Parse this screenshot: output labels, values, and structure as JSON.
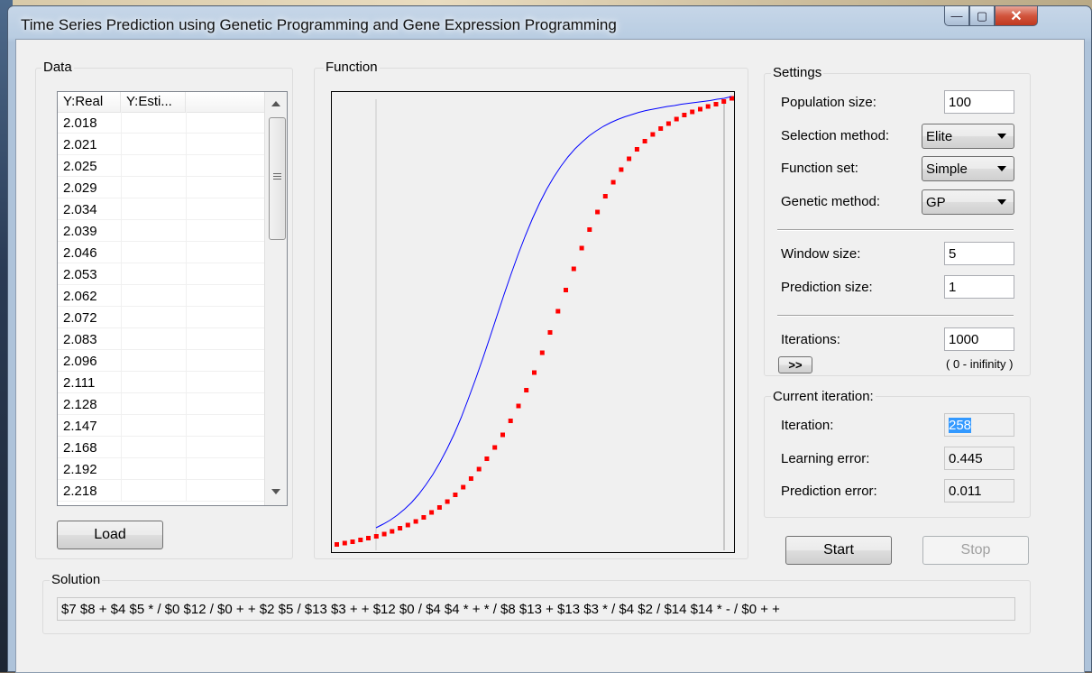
{
  "window": {
    "title": "Time Series Prediction using Genetic Programming and Gene Expression Programming",
    "minimize_glyph": "—",
    "maximize_glyph": "▢",
    "close_glyph": "✕"
  },
  "data_panel": {
    "group_label": "Data",
    "columns": [
      "Y:Real",
      "Y:Esti..."
    ],
    "rows": [
      "2.018",
      "2.021",
      "2.025",
      "2.029",
      "2.034",
      "2.039",
      "2.046",
      "2.053",
      "2.062",
      "2.072",
      "2.083",
      "2.096",
      "2.111",
      "2.128",
      "2.147",
      "2.168",
      "2.192",
      "2.218"
    ],
    "load_button": "Load"
  },
  "function_panel": {
    "group_label": "Function"
  },
  "chart_data": {
    "type": "scatter",
    "title": "",
    "xlabel": "",
    "ylabel": "",
    "series": [
      {
        "type": "line",
        "color": "#0000ff",
        "values": [
          0.044,
          0.052,
          0.061,
          0.072,
          0.085,
          0.1,
          0.118,
          0.139,
          0.162,
          0.189,
          0.219,
          0.252,
          0.289,
          0.33,
          0.373,
          0.418,
          0.465,
          0.513,
          0.56,
          0.606,
          0.65,
          0.691,
          0.729,
          0.763,
          0.794,
          0.821,
          0.845,
          0.866,
          0.884,
          0.899,
          0.913,
          0.924,
          0.934,
          0.942,
          0.949,
          0.955,
          0.96,
          0.965,
          0.969,
          0.972,
          0.975,
          0.978,
          0.98,
          0.983,
          0.985,
          0.987,
          0.989,
          0.991,
          0.994,
          0.996,
          1.0
        ]
      },
      {
        "type": "points",
        "color": "#ff0000",
        "values": [
          0.008,
          0.011,
          0.014,
          0.018,
          0.022,
          0.026,
          0.031,
          0.037,
          0.044,
          0.051,
          0.059,
          0.068,
          0.079,
          0.09,
          0.103,
          0.118,
          0.135,
          0.154,
          0.175,
          0.198,
          0.223,
          0.251,
          0.282,
          0.315,
          0.35,
          0.389,
          0.433,
          0.478,
          0.525,
          0.572,
          0.619,
          0.665,
          0.706,
          0.745,
          0.78,
          0.811,
          0.839,
          0.863,
          0.884,
          0.902,
          0.917,
          0.93,
          0.941,
          0.951,
          0.96,
          0.967,
          0.973,
          0.979,
          0.984,
          0.99,
          0.997
        ]
      }
    ]
  },
  "settings": {
    "group_label": "Settings",
    "population_size_label": "Population size:",
    "population_size": "100",
    "selection_method_label": "Selection method:",
    "selection_method": "Elite",
    "function_set_label": "Function set:",
    "function_set": "Simple",
    "genetic_method_label": "Genetic method:",
    "genetic_method": "GP",
    "window_size_label": "Window size:",
    "window_size": "5",
    "prediction_size_label": "Prediction size:",
    "prediction_size": "1",
    "iterations_label": "Iterations:",
    "iterations": "1000",
    "more_button": ">>",
    "iterations_hint": "( 0 - inifinity )"
  },
  "current_iteration": {
    "group_label": "Current iteration:",
    "iteration_label": "Iteration:",
    "iteration": "258",
    "learning_error_label": "Learning error:",
    "learning_error": "0.445",
    "prediction_error_label": "Prediction error:",
    "prediction_error": "0.011"
  },
  "actions": {
    "start": "Start",
    "stop": "Stop"
  },
  "solution": {
    "group_label": "Solution",
    "text": "$7 $8 + $4 $5 * / $0 $12 / $0 + + $2 $5 / $13 $3 + + $12 $0 / $4 $4 * + * / $8 $13 + $13 $3 * / $4 $2 / $14 $14 * - / $0 + +"
  }
}
